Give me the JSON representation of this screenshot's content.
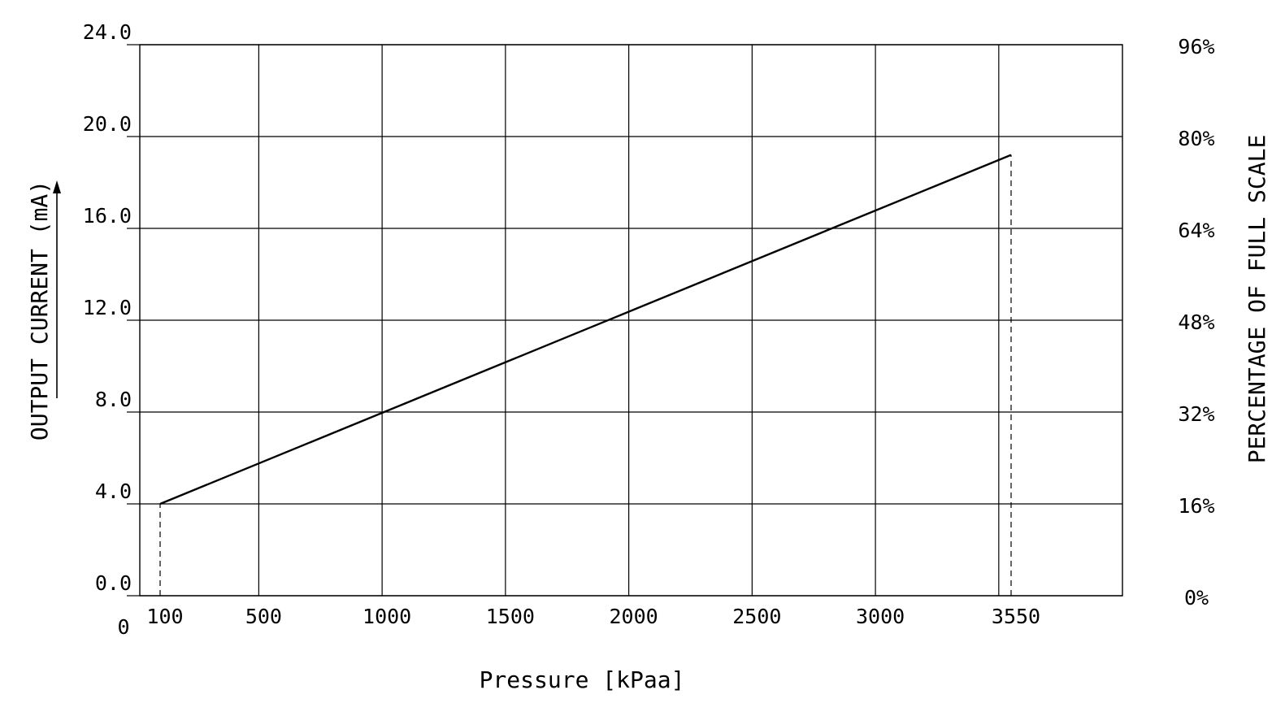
{
  "chart_data": {
    "type": "line",
    "xlabel": "Pressure [kPaa]",
    "ylabel": "OUTPUT CURRENT (mA)",
    "y2label": "PERCENTAGE OF FULL SCALE",
    "x_origin_label": "0",
    "x_ticks": [
      100,
      500,
      1000,
      1500,
      2000,
      2500,
      3000,
      3550
    ],
    "x_tick_labels": [
      "100",
      "500",
      "1000",
      "1500",
      "2000",
      "2500",
      "3000",
      "3550"
    ],
    "xlim": [
      0,
      4000
    ],
    "x_gridlines": [
      500,
      1000,
      1500,
      2000,
      2500,
      3000,
      3500
    ],
    "y_ticks": [
      0,
      4,
      8,
      12,
      16,
      20,
      24
    ],
    "y_tick_labels": [
      "0.0",
      "4.0",
      "8.0",
      "12.0",
      "16.0",
      "20.0",
      "24.0"
    ],
    "ylim": [
      0,
      24
    ],
    "y2_ticks": [
      0,
      4,
      8,
      12,
      16,
      20,
      24
    ],
    "y2_tick_labels": [
      "0%",
      "16%",
      "32%",
      "48%",
      "64%",
      "80%",
      "96%"
    ],
    "grid": true,
    "series": [
      {
        "x": [
          100,
          3550
        ],
        "y": [
          4.0,
          19.2
        ]
      }
    ],
    "reference_lines": [
      {
        "x": 100,
        "y_from": 0,
        "y_to": 4.0,
        "style": "dashed"
      },
      {
        "x": 3550,
        "y_from": 0,
        "y_to": 19.2,
        "style": "dashed"
      }
    ]
  }
}
